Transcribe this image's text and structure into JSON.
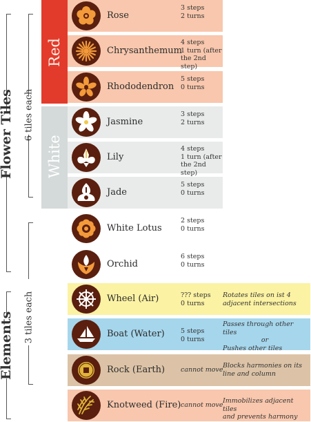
{
  "labels": {
    "flower_tiles": "Flower Tiles",
    "six_tiles_each": "6 tiles each",
    "three_tiles_each": "3 tiles each",
    "elements": "Elements"
  },
  "bands": {
    "red": {
      "label": "Red",
      "color": "#e23b2b",
      "row_color": "#f8c7ad"
    },
    "white": {
      "label": "White",
      "color": "#d3dad9",
      "row_color": "#e9ebeb"
    }
  },
  "flowers_red": [
    {
      "name": "Rose",
      "moves": [
        "3 steps",
        "2 turns"
      ],
      "icon": "rose-icon"
    },
    {
      "name": "Chrysanthemum",
      "moves": [
        "4 steps",
        "1 turn (after",
        "the 2nd step)"
      ],
      "icon": "chrysanthemum-icon"
    },
    {
      "name": "Rhododendron",
      "moves": [
        "5 steps",
        "0 turns"
      ],
      "icon": "rhododendron-icon"
    }
  ],
  "flowers_white": [
    {
      "name": "Jasmine",
      "moves": [
        "3 steps",
        "2 turns"
      ],
      "icon": "jasmine-icon"
    },
    {
      "name": "Lily",
      "moves": [
        "4 steps",
        "1 turn (after",
        "the 2nd step)"
      ],
      "icon": "lily-icon"
    },
    {
      "name": "Jade",
      "moves": [
        "5 steps",
        "0 turns"
      ],
      "icon": "jade-icon"
    }
  ],
  "special": [
    {
      "name": "White Lotus",
      "moves": [
        "2 steps",
        "0 turns"
      ],
      "icon": "white-lotus-icon"
    },
    {
      "name": "Orchid",
      "moves": [
        "6 steps",
        "0 turns"
      ],
      "icon": "orchid-icon"
    }
  ],
  "elements": [
    {
      "name": "Wheel (Air)",
      "moves": [
        "??? steps",
        "0 turns"
      ],
      "effect": [
        "Rotates tiles on ist 4",
        "adjacent intersections"
      ],
      "color": "#fbf2a3",
      "icon": "wheel-icon"
    },
    {
      "name": "Boat (Water)",
      "moves": [
        "5 steps",
        "0 turns"
      ],
      "effect": [
        "Passes through other tiles",
        "or",
        "Pushes other tiles"
      ],
      "color": "#a6d6ec",
      "icon": "boat-icon"
    },
    {
      "name": "Rock (Earth)",
      "moves": [
        "cannot move"
      ],
      "effect": [
        "Blocks harmonies on its",
        "line and column"
      ],
      "color": "#dcc3a7",
      "icon": "rock-icon"
    },
    {
      "name": "Knotweed (Fire)",
      "moves": [
        "cannot move"
      ],
      "effect": [
        "Immobilizes adjacent tiles",
        "and prevents harmony"
      ],
      "color": "#f8c7ad",
      "icon": "knotweed-icon"
    }
  ]
}
